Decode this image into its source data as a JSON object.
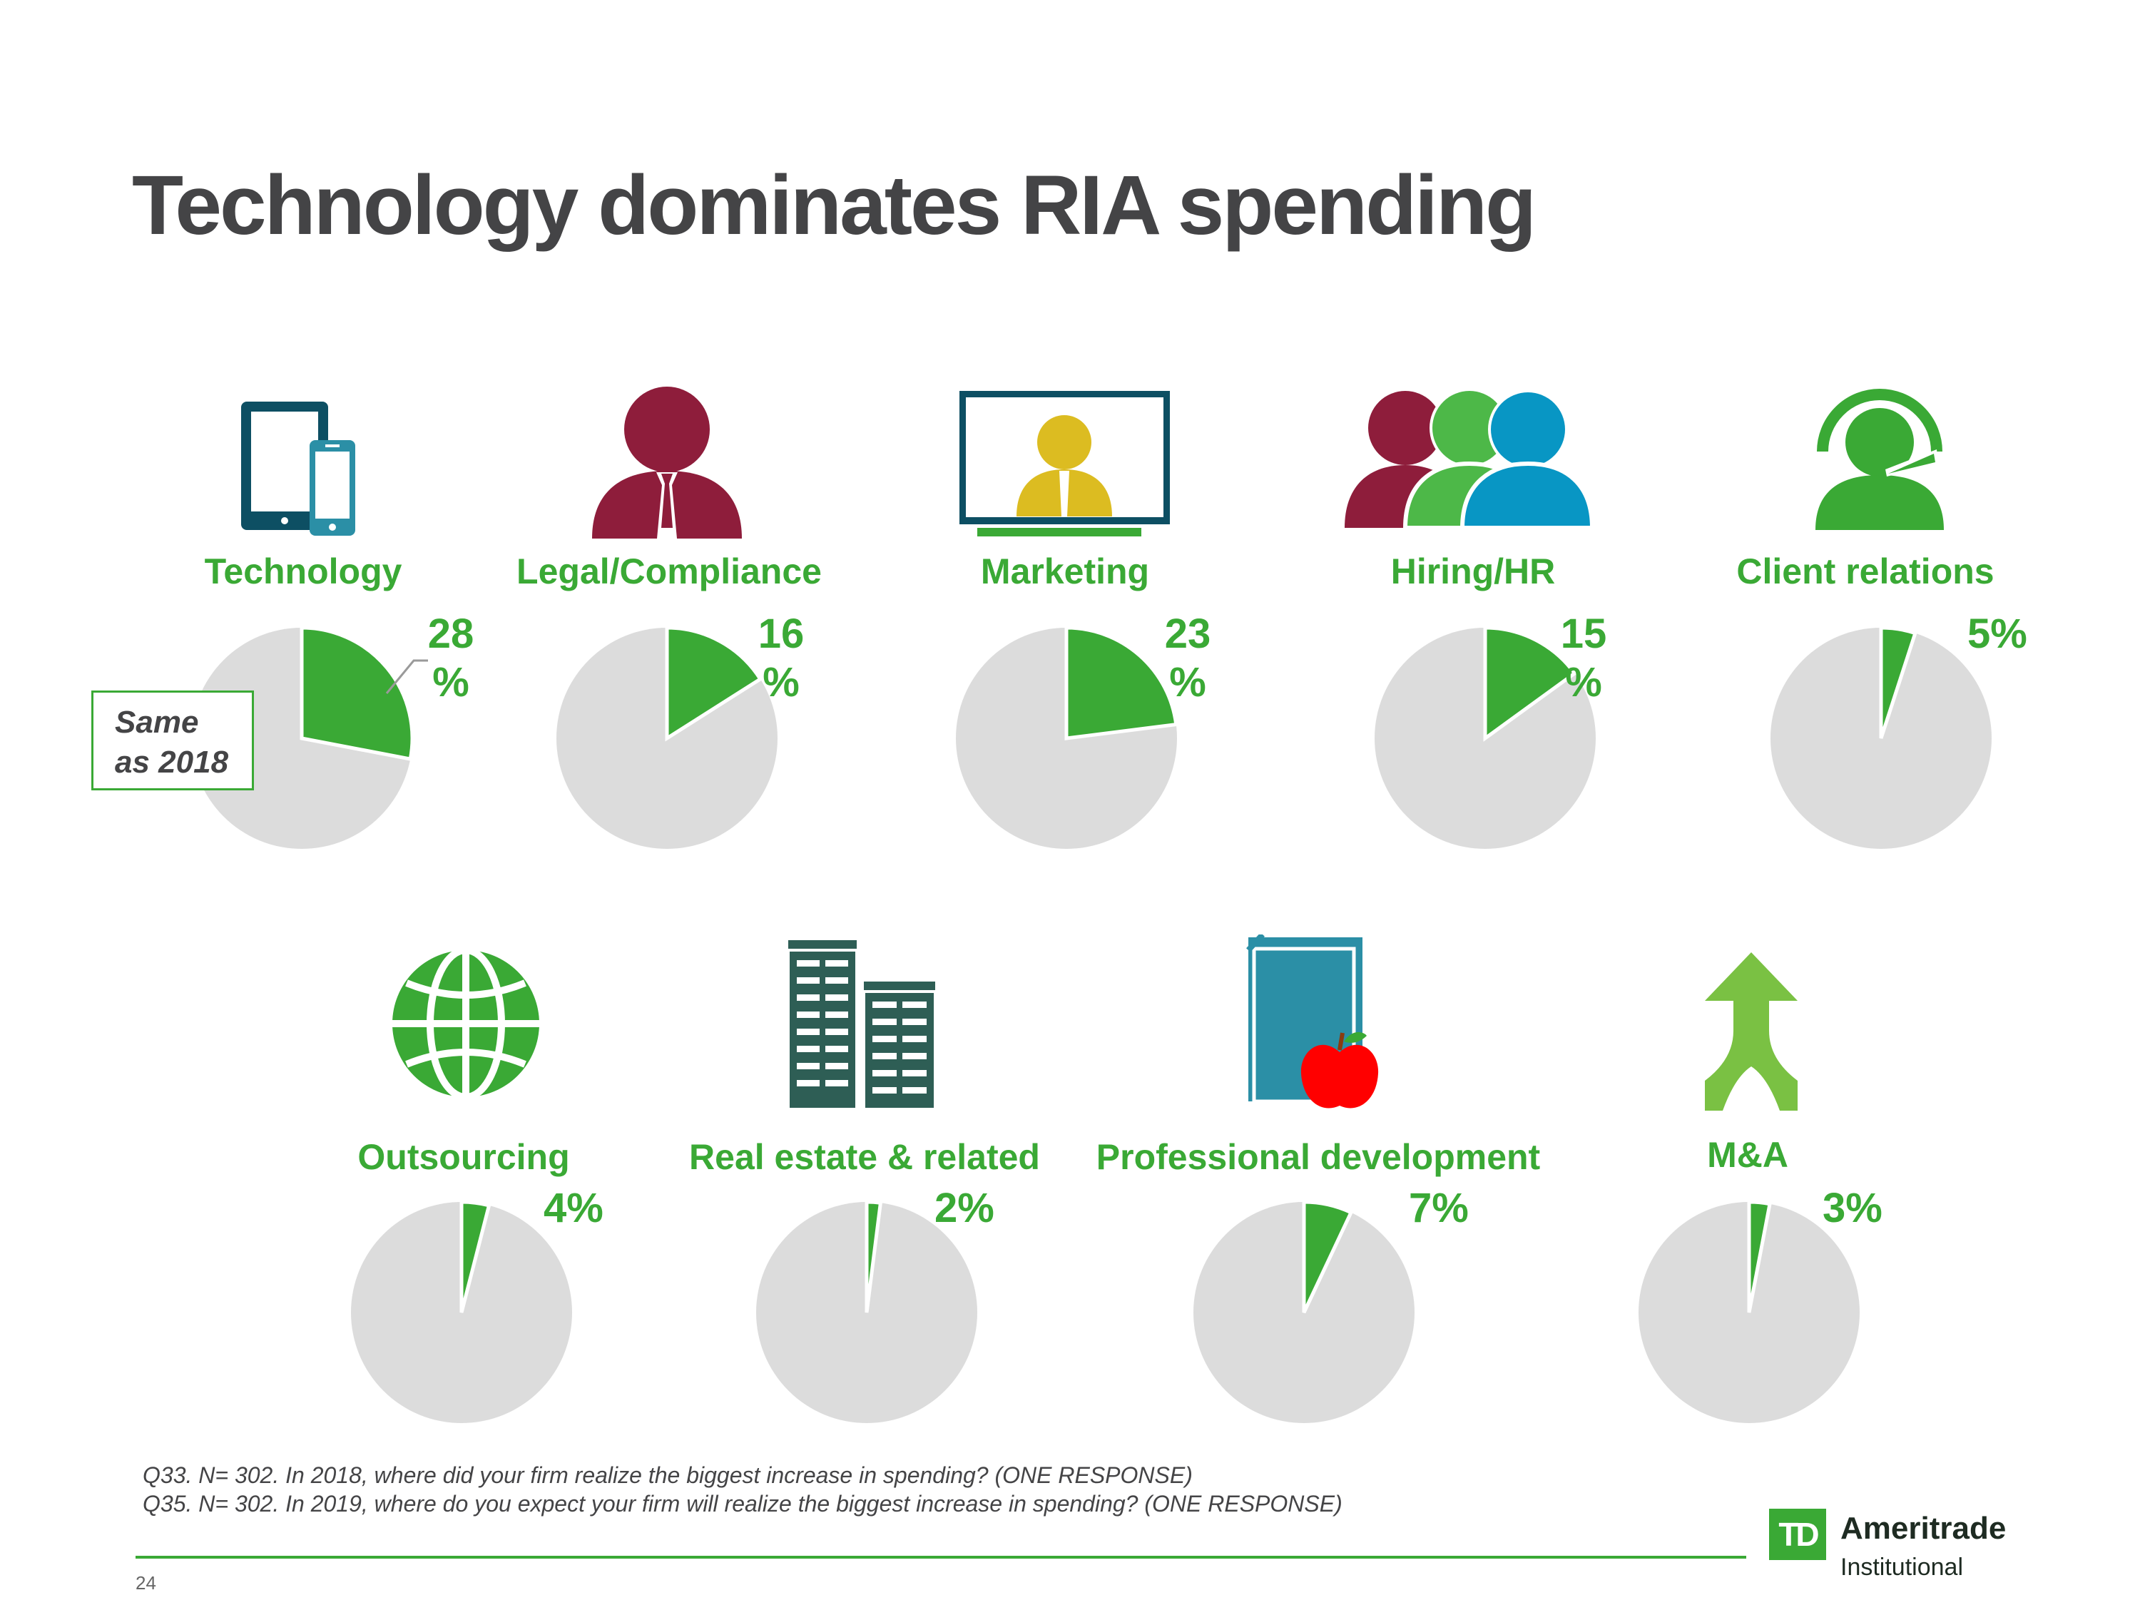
{
  "title": "Technology dominates RIA spending",
  "colors": {
    "accent": "#3aa935",
    "pie_rest": "#dcdcdc",
    "title": "#444446"
  },
  "chart_data": {
    "type": "pie",
    "series_name": "Biggest increase in spending",
    "categories": [
      "Technology",
      "Legal/Compliance",
      "Marketing",
      "Hiring/HR",
      "Client relations",
      "Outsourcing",
      "Real estate & related",
      "Professional development",
      "M&A"
    ],
    "values": [
      28,
      16,
      23,
      15,
      5,
      4,
      2,
      7,
      3
    ],
    "value_labels": [
      "28\n%",
      "16\n%",
      "23\n%",
      "15\n%",
      "5%",
      "4%",
      "2%",
      "7%",
      "3%"
    ],
    "icons": [
      "tablet-phone-icon",
      "businessman-icon",
      "presenter-screen-icon",
      "team-icon",
      "headset-agent-icon",
      "globe-icon",
      "buildings-icon",
      "book-apple-icon",
      "merge-arrow-icon"
    ],
    "unit": "%"
  },
  "callout": "Same as 2018",
  "notes": [
    "Q33. N= 302. In 2018, where did your firm realize the biggest increase in spending? (ONE RESPONSE)",
    "Q35. N= 302.  In 2019, where do you expect your firm will realize the biggest increase in spending? (ONE RESPONSE)"
  ],
  "page_number": "24",
  "logo": {
    "mark": "TD",
    "name": "Ameritrade",
    "sub": "Institutional"
  }
}
